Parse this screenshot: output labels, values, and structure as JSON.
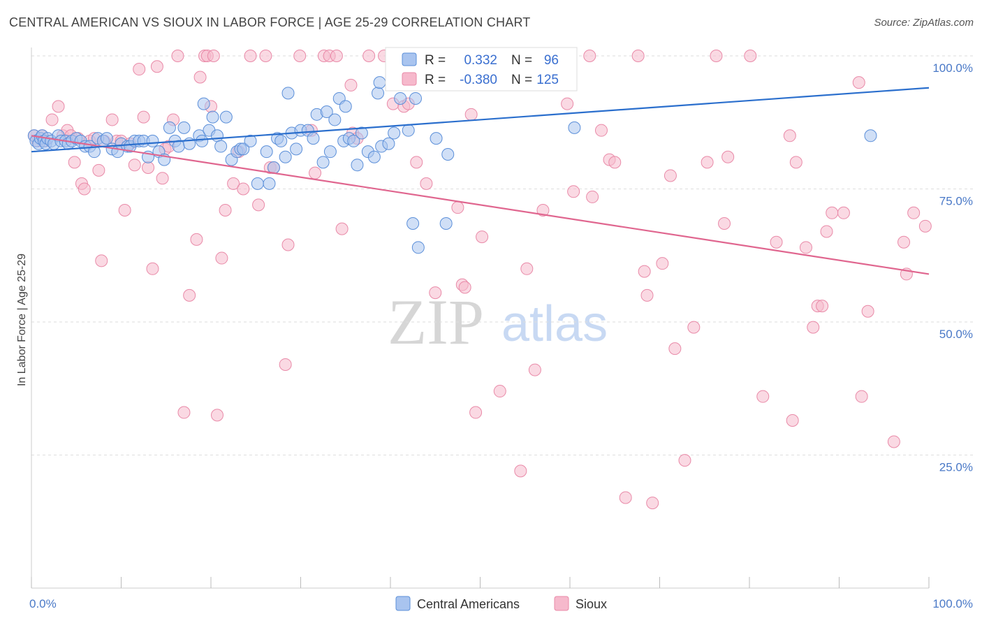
{
  "title": "CENTRAL AMERICAN VS SIOUX IN LABOR FORCE | AGE 25-29 CORRELATION CHART",
  "source": "Source: ZipAtlas.com",
  "watermark": {
    "zip": "ZIP",
    "atlas": "atlas"
  },
  "legend": {
    "r_label": "R =",
    "n_label": "N =",
    "blue": {
      "r": "0.332",
      "n": "96"
    },
    "pink": {
      "r": "-0.380",
      "n": "125"
    }
  },
  "colors": {
    "blue_fill": "#a9c4ef",
    "blue_stroke": "#5b8fd9",
    "blue_line": "#2b6fcd",
    "pink_fill": "#f6b9cc",
    "pink_stroke": "#e98aa8",
    "pink_line": "#e0668f",
    "tick_label": "#4a79c7",
    "grid": "#dedede"
  },
  "chart_data": {
    "type": "scatter",
    "title": "CENTRAL AMERICAN VS SIOUX IN LABOR FORCE | AGE 25-29 CORRELATION CHART",
    "xlabel": "",
    "ylabel": "In Labor Force | Age 25-29",
    "xlim": [
      0,
      100
    ],
    "ylim": [
      0,
      100
    ],
    "x_tick_labels": [
      "0.0%",
      "100.0%"
    ],
    "y_ticks": [
      25,
      50,
      75,
      100
    ],
    "y_tick_labels": [
      "25.0%",
      "50.0%",
      "75.0%",
      "100.0%"
    ],
    "grid": true,
    "legend_position": "top-center",
    "series": [
      {
        "name": "Central Americans",
        "trend": {
          "x": [
            0,
            100
          ],
          "y": [
            82,
            94
          ]
        },
        "points": [
          [
            0.3,
            85
          ],
          [
            0.5,
            84
          ],
          [
            0.8,
            83.5
          ],
          [
            1,
            84.5
          ],
          [
            1.2,
            85
          ],
          [
            1.4,
            84
          ],
          [
            1.6,
            83.5
          ],
          [
            1.8,
            84.5
          ],
          [
            2.2,
            84
          ],
          [
            2.5,
            83.5
          ],
          [
            3,
            85
          ],
          [
            3.3,
            84
          ],
          [
            3.8,
            84
          ],
          [
            4.1,
            83.5
          ],
          [
            4.5,
            84
          ],
          [
            5,
            84.5
          ],
          [
            5.5,
            84
          ],
          [
            6,
            83
          ],
          [
            6.5,
            83
          ],
          [
            7,
            82
          ],
          [
            7.4,
            84.5
          ],
          [
            8,
            84
          ],
          [
            8.4,
            84.5
          ],
          [
            9,
            82.5
          ],
          [
            9.6,
            82
          ],
          [
            10,
            83.5
          ],
          [
            10.7,
            83
          ],
          [
            11,
            83
          ],
          [
            11.5,
            84
          ],
          [
            12,
            84
          ],
          [
            12.5,
            84
          ],
          [
            13,
            81
          ],
          [
            13.5,
            84
          ],
          [
            14.2,
            82
          ],
          [
            14.8,
            80.5
          ],
          [
            15.4,
            86.5
          ],
          [
            16,
            84
          ],
          [
            16.4,
            83
          ],
          [
            17,
            86.5
          ],
          [
            17.6,
            83.5
          ],
          [
            18.7,
            85
          ],
          [
            19,
            84
          ],
          [
            19.2,
            91
          ],
          [
            19.8,
            86
          ],
          [
            20.2,
            88.5
          ],
          [
            20.7,
            85
          ],
          [
            21.1,
            83
          ],
          [
            21.7,
            88.5
          ],
          [
            22.3,
            80.5
          ],
          [
            22.9,
            82
          ],
          [
            23.3,
            82.5
          ],
          [
            23.6,
            82.5
          ],
          [
            24.4,
            84
          ],
          [
            25.2,
            76
          ],
          [
            26.2,
            82
          ],
          [
            26.5,
            76
          ],
          [
            27,
            79
          ],
          [
            27.4,
            84.5
          ],
          [
            27.8,
            84
          ],
          [
            28.3,
            81
          ],
          [
            28.6,
            93
          ],
          [
            29,
            85.5
          ],
          [
            29.5,
            82.5
          ],
          [
            30,
            86
          ],
          [
            30.8,
            86
          ],
          [
            31.4,
            84.5
          ],
          [
            31.8,
            89
          ],
          [
            32.5,
            80
          ],
          [
            32.9,
            89.5
          ],
          [
            33.3,
            82
          ],
          [
            33.8,
            88
          ],
          [
            34.3,
            92
          ],
          [
            34.8,
            84
          ],
          [
            35,
            90.5
          ],
          [
            35.4,
            84.5
          ],
          [
            35.9,
            84
          ],
          [
            36.3,
            79.5
          ],
          [
            36.8,
            85.5
          ],
          [
            37.5,
            82
          ],
          [
            38.2,
            81
          ],
          [
            38.6,
            93
          ],
          [
            38.8,
            95
          ],
          [
            39,
            83
          ],
          [
            39.8,
            83.5
          ],
          [
            40.4,
            85.5
          ],
          [
            41.1,
            92
          ],
          [
            41.6,
            100
          ],
          [
            42,
            86
          ],
          [
            42.5,
            68.5
          ],
          [
            42.8,
            92
          ],
          [
            43.1,
            64
          ],
          [
            45.1,
            84.5
          ],
          [
            46.2,
            68.5
          ],
          [
            46.4,
            81.5
          ],
          [
            60.5,
            86.5
          ],
          [
            93.5,
            85
          ]
        ]
      },
      {
        "name": "Sioux",
        "trend": {
          "x": [
            0,
            100
          ],
          "y": [
            85,
            59
          ]
        },
        "points": [
          [
            0.3,
            85
          ],
          [
            0.7,
            84
          ],
          [
            1.2,
            85
          ],
          [
            1.5,
            84
          ],
          [
            2.3,
            88
          ],
          [
            3,
            90.5
          ],
          [
            3.5,
            85
          ],
          [
            4,
            86
          ],
          [
            4.4,
            85
          ],
          [
            4.8,
            80
          ],
          [
            5.2,
            84.5
          ],
          [
            5.6,
            76
          ],
          [
            5.9,
            75
          ],
          [
            6.5,
            84
          ],
          [
            7,
            84.5
          ],
          [
            7.5,
            78.5
          ],
          [
            7.8,
            61.5
          ],
          [
            8.1,
            84
          ],
          [
            9,
            88
          ],
          [
            9.5,
            84
          ],
          [
            10,
            84
          ],
          [
            10.4,
            71
          ],
          [
            11,
            83.5
          ],
          [
            11.5,
            79.5
          ],
          [
            12,
            97.5
          ],
          [
            12.5,
            88.5
          ],
          [
            13,
            79
          ],
          [
            13.5,
            60
          ],
          [
            14,
            98
          ],
          [
            14.6,
            77
          ],
          [
            14.9,
            82.5
          ],
          [
            15.3,
            83
          ],
          [
            15.8,
            88
          ],
          [
            16.3,
            100
          ],
          [
            17,
            33
          ],
          [
            17.6,
            55
          ],
          [
            18.4,
            65.5
          ],
          [
            18.8,
            96
          ],
          [
            19.3,
            100
          ],
          [
            19.6,
            100
          ],
          [
            20,
            90.5
          ],
          [
            20.3,
            100
          ],
          [
            20.7,
            32.5
          ],
          [
            21.2,
            62
          ],
          [
            21.6,
            71
          ],
          [
            22.5,
            76
          ],
          [
            23.1,
            82
          ],
          [
            23.6,
            75
          ],
          [
            24.4,
            100
          ],
          [
            25.3,
            72
          ],
          [
            26.1,
            100
          ],
          [
            26.6,
            79
          ],
          [
            27,
            79
          ],
          [
            28.3,
            42
          ],
          [
            28.6,
            64.5
          ],
          [
            29.9,
            100
          ],
          [
            31.2,
            86
          ],
          [
            31.6,
            78
          ],
          [
            32.6,
            100
          ],
          [
            33.2,
            100
          ],
          [
            34,
            100
          ],
          [
            34.6,
            67.5
          ],
          [
            35.6,
            94.5
          ],
          [
            35.8,
            85.5
          ],
          [
            36.3,
            84.5
          ],
          [
            37.6,
            100
          ],
          [
            39.3,
            100
          ],
          [
            40.3,
            91
          ],
          [
            41.5,
            90.5
          ],
          [
            42,
            91
          ],
          [
            42.9,
            80
          ],
          [
            44,
            76
          ],
          [
            45,
            55.5
          ],
          [
            46.1,
            100
          ],
          [
            47.5,
            71.5
          ],
          [
            48,
            57
          ],
          [
            48.3,
            56.5
          ],
          [
            49,
            89
          ],
          [
            49.5,
            33
          ],
          [
            50.2,
            66
          ],
          [
            52.2,
            37
          ],
          [
            53,
            100
          ],
          [
            54.5,
            22
          ],
          [
            55.2,
            60
          ],
          [
            56.1,
            41
          ],
          [
            57,
            71
          ],
          [
            58.3,
            100
          ],
          [
            59.7,
            91
          ],
          [
            60.4,
            74.5
          ],
          [
            62.2,
            100
          ],
          [
            62.5,
            73.5
          ],
          [
            63.5,
            86
          ],
          [
            64.4,
            80.5
          ],
          [
            65,
            80
          ],
          [
            66.2,
            17
          ],
          [
            67.6,
            100
          ],
          [
            68.3,
            59.5
          ],
          [
            68.6,
            55
          ],
          [
            69.2,
            16
          ],
          [
            70.3,
            61
          ],
          [
            71.2,
            77.5
          ],
          [
            71.7,
            45
          ],
          [
            72.8,
            24
          ],
          [
            73.8,
            49
          ],
          [
            75.3,
            80
          ],
          [
            76.3,
            100
          ],
          [
            77.2,
            68.5
          ],
          [
            77.6,
            81
          ],
          [
            80.1,
            100
          ],
          [
            81.5,
            36
          ],
          [
            83,
            65
          ],
          [
            84.5,
            85
          ],
          [
            84.8,
            31.5
          ],
          [
            85.2,
            80
          ],
          [
            86.3,
            64
          ],
          [
            87.1,
            49
          ],
          [
            87.6,
            53
          ],
          [
            88.1,
            53
          ],
          [
            88.6,
            67
          ],
          [
            89.2,
            70.5
          ],
          [
            90.5,
            70.5
          ],
          [
            92.2,
            95
          ],
          [
            92.5,
            36
          ],
          [
            93.2,
            52
          ],
          [
            96.1,
            27.5
          ],
          [
            97.2,
            65
          ],
          [
            97.5,
            59
          ],
          [
            98.3,
            70.5
          ],
          [
            99.6,
            68
          ]
        ]
      }
    ]
  }
}
